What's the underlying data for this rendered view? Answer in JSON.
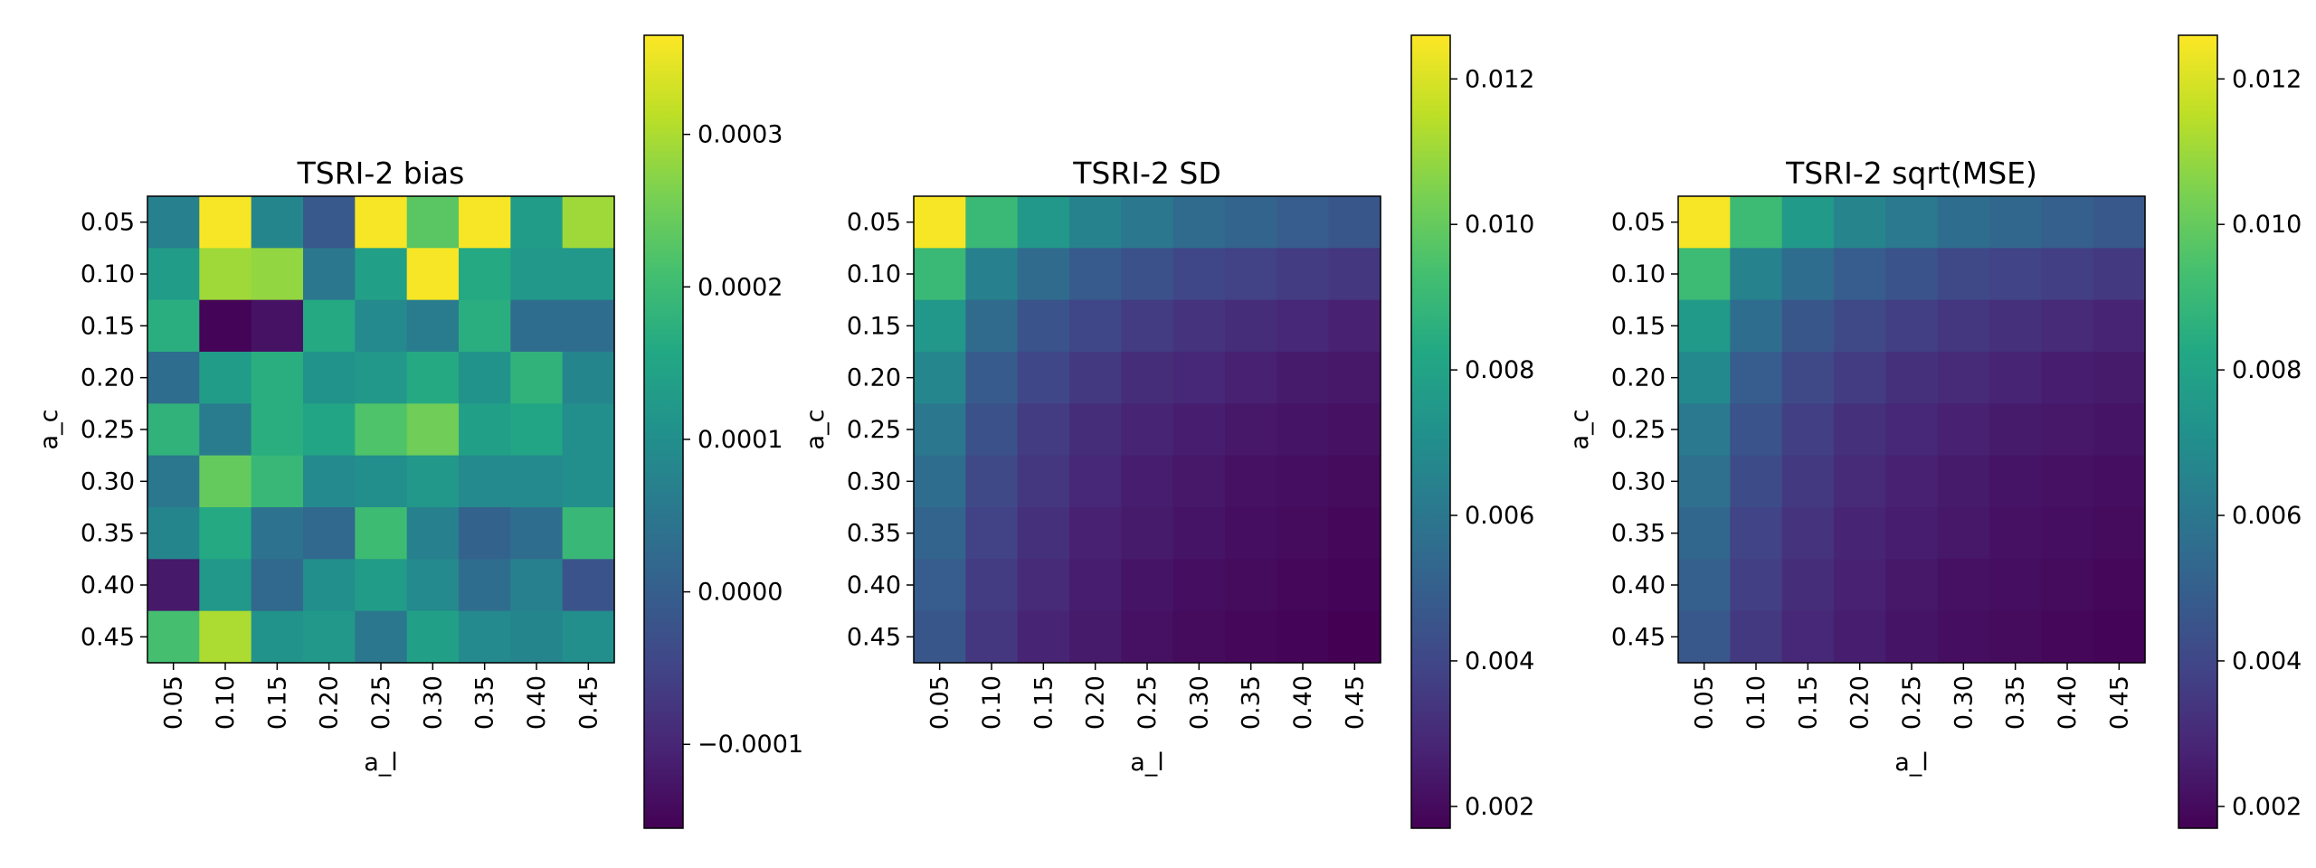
{
  "chart_data": [
    {
      "type": "heatmap",
      "title": "TSRI-2 bias",
      "xlabel": "a_l",
      "ylabel": "a_c",
      "x_categories": [
        "0.05",
        "0.10",
        "0.15",
        "0.20",
        "0.25",
        "0.30",
        "0.35",
        "0.40",
        "0.45"
      ],
      "y_categories": [
        "0.05",
        "0.10",
        "0.15",
        "0.20",
        "0.25",
        "0.30",
        "0.35",
        "0.40",
        "0.45"
      ],
      "colormap": "viridis",
      "vmin": -0.000155,
      "vmax": 0.000365,
      "colorbar_ticks": [
        -0.0001,
        0.0,
        0.0001,
        0.0002,
        0.0003
      ],
      "colorbar_tick_labels": [
        "−0.0001",
        "0.0000",
        "0.0001",
        "0.0002",
        "0.0003"
      ],
      "values": [
        [
          7e-05,
          0.00036,
          8e-05,
          -1e-05,
          0.00036,
          0.00023,
          0.00036,
          0.00013,
          0.00029
        ],
        [
          0.00013,
          0.00029,
          0.00028,
          5e-05,
          0.00014,
          0.00036,
          0.00016,
          0.00012,
          0.00012
        ],
        [
          0.00017,
          -0.00015,
          -0.00013,
          0.00016,
          9e-05,
          6e-05,
          0.00017,
          3e-05,
          3e-05
        ],
        [
          3e-05,
          0.00013,
          0.00017,
          0.00011,
          0.00012,
          0.00016,
          0.00011,
          0.00018,
          8e-05
        ],
        [
          0.00018,
          6e-05,
          0.00017,
          0.00015,
          0.00022,
          0.00025,
          0.00014,
          0.00015,
          0.0001
        ],
        [
          5e-05,
          0.00024,
          0.00019,
          9e-05,
          0.0001,
          0.00012,
          9e-05,
          9e-05,
          0.0001
        ],
        [
          8e-05,
          0.00016,
          4e-05,
          2e-05,
          0.0002,
          7e-05,
          1e-05,
          3e-05,
          0.00019
        ],
        [
          -0.00012,
          0.00012,
          2e-05,
          0.0001,
          0.00013,
          9e-05,
          3e-05,
          7e-05,
          -2e-05
        ],
        [
          0.00021,
          0.0003,
          0.00011,
          0.00012,
          5e-05,
          0.00014,
          9e-05,
          8e-05,
          0.0001
        ]
      ]
    },
    {
      "type": "heatmap",
      "title": "TSRI-2 SD",
      "xlabel": "a_l",
      "ylabel": "a_c",
      "x_categories": [
        "0.05",
        "0.10",
        "0.15",
        "0.20",
        "0.25",
        "0.30",
        "0.35",
        "0.40",
        "0.45"
      ],
      "y_categories": [
        "0.05",
        "0.10",
        "0.15",
        "0.20",
        "0.25",
        "0.30",
        "0.35",
        "0.40",
        "0.45"
      ],
      "colormap": "viridis",
      "vmin": 0.0017,
      "vmax": 0.0126,
      "colorbar_ticks": [
        0.002,
        0.004,
        0.006,
        0.008,
        0.01,
        0.012
      ],
      "colorbar_tick_labels": [
        "0.002",
        "0.004",
        "0.006",
        "0.008",
        "0.010",
        "0.012"
      ],
      "values": [
        [
          0.0125,
          0.009,
          0.0075,
          0.0065,
          0.006,
          0.0055,
          0.0052,
          0.0049,
          0.0046
        ],
        [
          0.009,
          0.0064,
          0.0055,
          0.0048,
          0.0044,
          0.004,
          0.0038,
          0.0036,
          0.0034
        ],
        [
          0.0075,
          0.0055,
          0.0045,
          0.004,
          0.0036,
          0.0033,
          0.0031,
          0.0029,
          0.0027
        ],
        [
          0.0067,
          0.0048,
          0.004,
          0.0035,
          0.0031,
          0.0029,
          0.0027,
          0.0025,
          0.0024
        ],
        [
          0.006,
          0.0044,
          0.0036,
          0.0031,
          0.0028,
          0.0026,
          0.0024,
          0.0023,
          0.0022
        ],
        [
          0.0056,
          0.0041,
          0.0034,
          0.0029,
          0.0026,
          0.0024,
          0.0022,
          0.0021,
          0.002
        ],
        [
          0.0052,
          0.0038,
          0.0032,
          0.0027,
          0.0025,
          0.0023,
          0.0021,
          0.002,
          0.0019
        ],
        [
          0.0049,
          0.0036,
          0.003,
          0.0026,
          0.0023,
          0.0021,
          0.002,
          0.0019,
          0.0018
        ],
        [
          0.0046,
          0.0034,
          0.0028,
          0.0025,
          0.0022,
          0.002,
          0.0019,
          0.0018,
          0.0017
        ]
      ]
    },
    {
      "type": "heatmap",
      "title": "TSRI-2 sqrt(MSE)",
      "xlabel": "a_l",
      "ylabel": "a_c",
      "x_categories": [
        "0.05",
        "0.10",
        "0.15",
        "0.20",
        "0.25",
        "0.30",
        "0.35",
        "0.40",
        "0.45"
      ],
      "y_categories": [
        "0.05",
        "0.10",
        "0.15",
        "0.20",
        "0.25",
        "0.30",
        "0.35",
        "0.40",
        "0.45"
      ],
      "colormap": "viridis",
      "vmin": 0.0017,
      "vmax": 0.0126,
      "colorbar_ticks": [
        0.002,
        0.004,
        0.006,
        0.008,
        0.01,
        0.012
      ],
      "colorbar_tick_labels": [
        "0.002",
        "0.004",
        "0.006",
        "0.008",
        "0.010",
        "0.012"
      ],
      "values": [
        [
          0.0125,
          0.0091,
          0.0076,
          0.0066,
          0.0061,
          0.0056,
          0.0053,
          0.005,
          0.0047
        ],
        [
          0.0091,
          0.0065,
          0.0056,
          0.0049,
          0.0045,
          0.0041,
          0.0039,
          0.0037,
          0.0035
        ],
        [
          0.0076,
          0.0056,
          0.0046,
          0.0041,
          0.0037,
          0.0034,
          0.0032,
          0.003,
          0.0028
        ],
        [
          0.0068,
          0.0049,
          0.0041,
          0.0036,
          0.0032,
          0.003,
          0.0028,
          0.0026,
          0.0025
        ],
        [
          0.0061,
          0.0045,
          0.0037,
          0.0032,
          0.0029,
          0.0027,
          0.0025,
          0.0024,
          0.0023
        ],
        [
          0.0057,
          0.0042,
          0.0035,
          0.003,
          0.0027,
          0.0025,
          0.0023,
          0.0022,
          0.0021
        ],
        [
          0.0053,
          0.0039,
          0.0033,
          0.0028,
          0.0026,
          0.0024,
          0.0022,
          0.0021,
          0.002
        ],
        [
          0.005,
          0.0037,
          0.0031,
          0.0027,
          0.0024,
          0.0022,
          0.0021,
          0.002,
          0.0019
        ],
        [
          0.0047,
          0.0035,
          0.0029,
          0.0026,
          0.0023,
          0.0021,
          0.002,
          0.0019,
          0.0018
        ]
      ]
    }
  ]
}
